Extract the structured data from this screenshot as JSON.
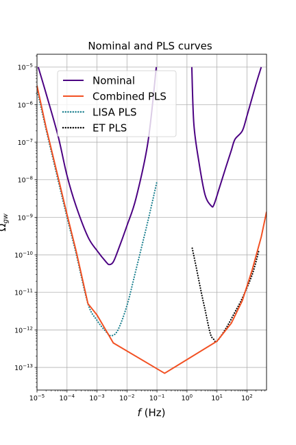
{
  "chart_data": {
    "type": "line",
    "title": "Nominal and PLS curves",
    "xlabel_italic": "f",
    "xlabel_rest": " (Hz)",
    "ylabel_base": "Ω",
    "ylabel_sub": "gw",
    "x_scale": "log",
    "y_scale": "log",
    "xlim": [
      1e-05,
      450
    ],
    "ylim": [
      2.5e-14,
      2.2e-05
    ],
    "grid": true,
    "legend_position": "upper-left",
    "x_ticks": [
      {
        "value": 1e-05,
        "base": "10",
        "exp": "−5"
      },
      {
        "value": 0.0001,
        "base": "10",
        "exp": "−4"
      },
      {
        "value": 0.001,
        "base": "10",
        "exp": "−3"
      },
      {
        "value": 0.01,
        "base": "10",
        "exp": "−2"
      },
      {
        "value": 0.1,
        "base": "10",
        "exp": "−1"
      },
      {
        "value": 1,
        "base": "10",
        "exp": "0"
      },
      {
        "value": 10,
        "base": "10",
        "exp": "1"
      },
      {
        "value": 100,
        "base": "10",
        "exp": "2"
      }
    ],
    "y_ticks": [
      {
        "value": 1e-13,
        "base": "10",
        "exp": "−13"
      },
      {
        "value": 1e-12,
        "base": "10",
        "exp": "−12"
      },
      {
        "value": 1e-11,
        "base": "10",
        "exp": "−11"
      },
      {
        "value": 1e-10,
        "base": "10",
        "exp": "−10"
      },
      {
        "value": 1e-09,
        "base": "10",
        "exp": "−9"
      },
      {
        "value": 1e-08,
        "base": "10",
        "exp": "−8"
      },
      {
        "value": 1e-07,
        "base": "10",
        "exp": "−7"
      },
      {
        "value": 1e-06,
        "base": "10",
        "exp": "−6"
      },
      {
        "value": 1e-05,
        "base": "10",
        "exp": "−5"
      }
    ],
    "series": [
      {
        "name": "Nominal",
        "color": "#4b0082",
        "style": "solid",
        "segments": [
          [
            [
              1.1e-05,
              1e-05
            ],
            [
              2e-05,
              2e-06
            ],
            [
              5e-05,
              1.5e-07
            ],
            [
              0.0001,
              1.3e-08
            ],
            [
              0.0002,
              2e-09
            ],
            [
              0.0005,
              3e-10
            ],
            [
              0.001,
              1.3e-10
            ],
            [
              0.002,
              6.5e-11
            ],
            [
              0.0026,
              5.5e-11
            ],
            [
              0.0035,
              6.5e-11
            ],
            [
              0.005,
              1.3e-10
            ],
            [
              0.01,
              6e-10
            ],
            [
              0.02,
              3.2e-09
            ],
            [
              0.05,
              1e-07
            ],
            [
              0.095,
              1e-05
            ]
          ],
          [
            [
              1.45,
              1e-05
            ],
            [
              1.7,
              3e-07
            ],
            [
              2.5,
              3e-08
            ],
            [
              4,
              4e-09
            ],
            [
              6.5,
              2e-09
            ],
            [
              8,
              2.2e-09
            ],
            [
              12,
              6e-09
            ],
            [
              20,
              2.2e-08
            ],
            [
              30,
              6e-08
            ],
            [
              40,
              1.2e-07
            ],
            [
              70,
              2e-07
            ],
            [
              100,
              5e-07
            ],
            [
              200,
              3.5e-06
            ],
            [
              300,
              1e-05
            ]
          ]
        ]
      },
      {
        "name": "Combined PLS",
        "color": "#f25022",
        "style": "solid",
        "segments": [
          [
            [
              1e-05,
              3.2e-06
            ],
            [
              2e-05,
              2.5e-07
            ],
            [
              5e-05,
              1.2e-08
            ],
            [
              0.0001,
              1.2e-09
            ],
            [
              0.0002,
              1.3e-10
            ],
            [
              0.0005,
              5e-12
            ],
            [
              0.001,
              2.5e-12
            ],
            [
              0.0035,
              4.5e-13
            ],
            [
              0.18,
              7e-14
            ],
            [
              10,
              5e-13
            ],
            [
              30,
              1.5e-12
            ],
            [
              70,
              6e-12
            ],
            [
              150,
              4e-11
            ],
            [
              300,
              3e-10
            ],
            [
              450,
              1.4e-09
            ]
          ]
        ]
      },
      {
        "name": "LISA PLS",
        "color": "#1a7f8e",
        "style": "dotted",
        "segments": [
          [
            [
              1e-05,
              2.5e-06
            ],
            [
              2e-05,
              2.2e-07
            ],
            [
              5e-05,
              1e-08
            ],
            [
              0.0001,
              1e-09
            ],
            [
              0.0002,
              1.1e-10
            ],
            [
              0.0005,
              5e-12
            ],
            [
              0.001,
              1.8e-12
            ],
            [
              0.002,
              9e-13
            ],
            [
              0.003,
              7e-13
            ],
            [
              0.005,
              1e-12
            ],
            [
              0.01,
              4.5e-12
            ],
            [
              0.02,
              4e-11
            ],
            [
              0.05,
              8e-10
            ],
            [
              0.1,
              9e-09
            ]
          ]
        ]
      },
      {
        "name": "ET PLS",
        "color": "#000000",
        "style": "dotted",
        "segments": [
          [
            [
              1.5,
              1.5e-10
            ],
            [
              2,
              5e-11
            ],
            [
              3,
              1e-11
            ],
            [
              4,
              3.5e-12
            ],
            [
              6,
              8e-13
            ],
            [
              8,
              5.5e-13
            ],
            [
              10,
              5e-13
            ],
            [
              20,
              1.1e-12
            ],
            [
              40,
              3e-12
            ],
            [
              70,
              7e-12
            ],
            [
              150,
              3e-11
            ],
            [
              250,
              1.3e-10
            ]
          ]
        ]
      }
    ]
  }
}
